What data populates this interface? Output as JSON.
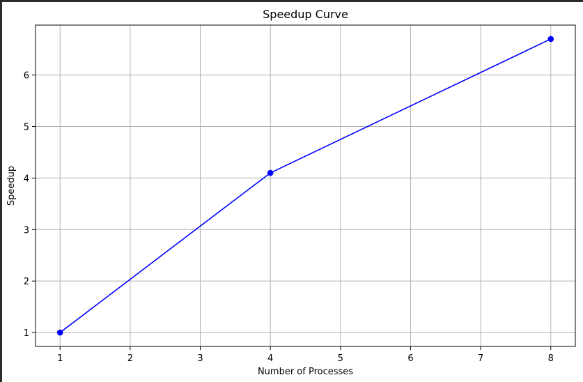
{
  "chart_data": {
    "type": "line",
    "title": "Speedup Curve",
    "xlabel": "Number of Processes",
    "ylabel": "Speedup",
    "x_ticks": [
      1,
      2,
      3,
      4,
      5,
      6,
      7,
      8
    ],
    "y_ticks": [
      1,
      2,
      3,
      4,
      5,
      6
    ],
    "xlim": [
      0.65,
      8.35
    ],
    "ylim": [
      0.73,
      6.97
    ],
    "grid": true,
    "series": [
      {
        "x": [
          1,
          4,
          8
        ],
        "y": [
          1.0,
          4.1,
          6.7
        ],
        "color": "#0000ff",
        "marker": "circle"
      }
    ]
  }
}
